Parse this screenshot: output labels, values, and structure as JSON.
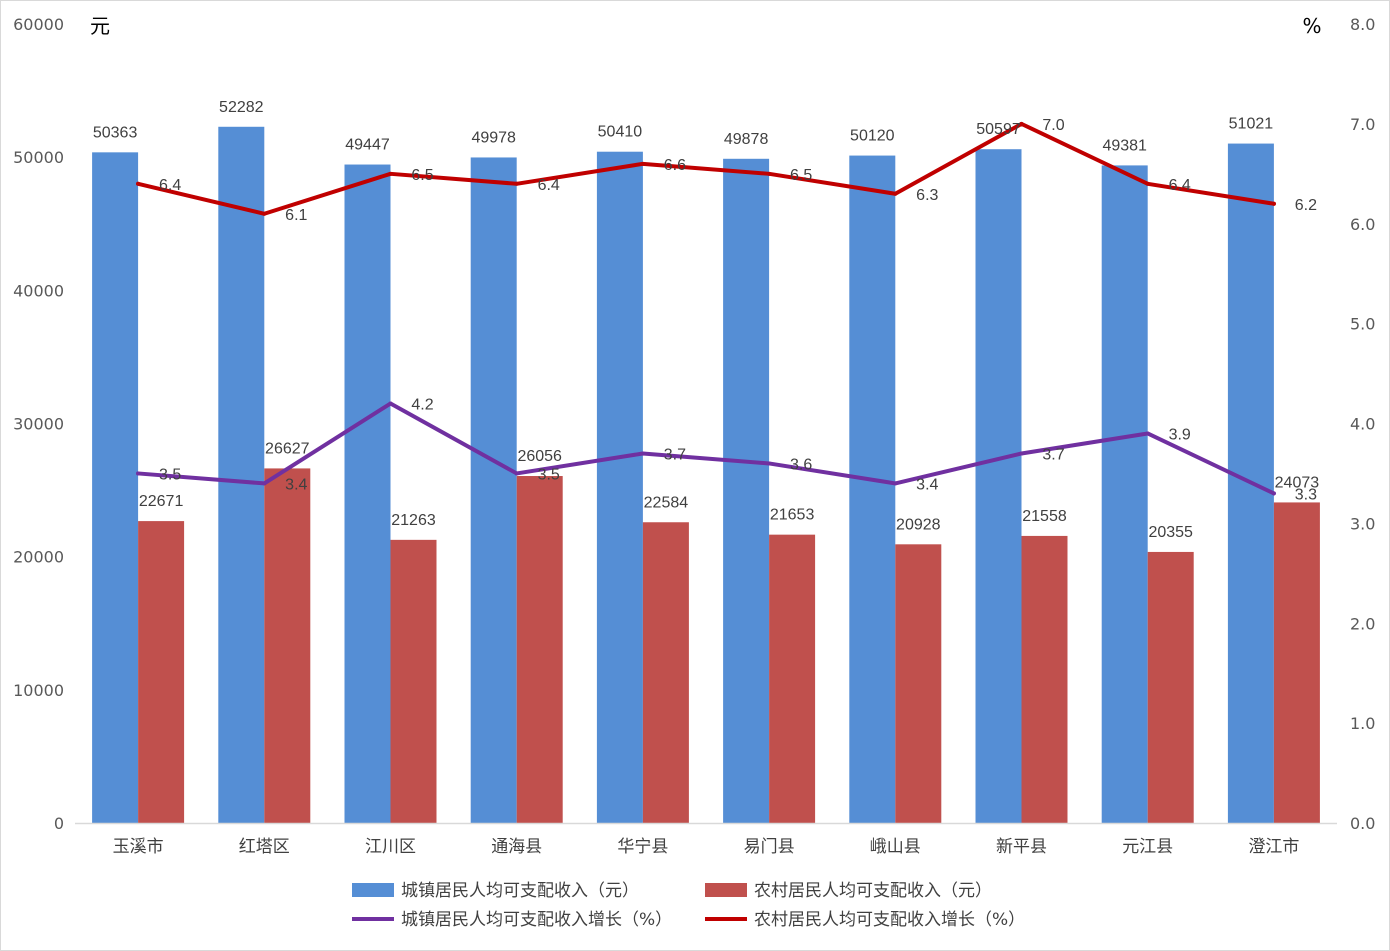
{
  "chart_data": {
    "type": "bar",
    "categories": [
      "玉溪市",
      "红塔区",
      "江川区",
      "通海县",
      "华宁县",
      "易门县",
      "峨山县",
      "新平县",
      "元江县",
      "澄江市"
    ],
    "series": [
      {
        "name": "城镇居民人均可支配收入（元）",
        "kind": "bar",
        "axis": "left",
        "color": "#558ED5",
        "values": [
          50363,
          52282,
          49447,
          49978,
          50410,
          49878,
          50120,
          50597,
          49381,
          51021
        ]
      },
      {
        "name": "农村居民人均可支配收入（元）",
        "kind": "bar",
        "axis": "left",
        "color": "#C0504D",
        "values": [
          22671,
          26627,
          21263,
          26056,
          22584,
          21653,
          20928,
          21558,
          20355,
          24073
        ]
      },
      {
        "name": "城镇居民人均可支配收入增长（%）",
        "kind": "line",
        "axis": "right",
        "color": "#7030A0",
        "values": [
          3.5,
          3.4,
          4.2,
          3.5,
          3.7,
          3.6,
          3.4,
          3.7,
          3.9,
          3.3
        ],
        "labels": [
          "3.5",
          "3.4",
          "4.2",
          "3.5",
          "3.7",
          "3.6",
          "3.4",
          "3.7",
          "3.9",
          "3.3"
        ]
      },
      {
        "name": "农村居民人均可支配收入增长（%）",
        "kind": "line",
        "axis": "right",
        "color": "#C00000",
        "values": [
          6.4,
          6.1,
          6.5,
          6.4,
          6.6,
          6.5,
          6.3,
          7.0,
          6.4,
          6.2
        ],
        "labels": [
          "6.4",
          "6.1",
          "6.5",
          "6.4",
          "6.6",
          "6.5",
          "6.3",
          "7.0",
          "6.4",
          "6.2"
        ]
      }
    ],
    "y_left": {
      "unit": "元",
      "range": [
        0,
        60000
      ],
      "ticks": [
        "0",
        "10000",
        "20000",
        "30000",
        "40000",
        "50000",
        "60000"
      ]
    },
    "y_right": {
      "unit": "%",
      "range": [
        0,
        8
      ],
      "ticks": [
        "0.0",
        "1.0",
        "2.0",
        "3.0",
        "4.0",
        "5.0",
        "6.0",
        "7.0",
        "8.0"
      ]
    },
    "grid": false,
    "legend_position": "bottom"
  }
}
